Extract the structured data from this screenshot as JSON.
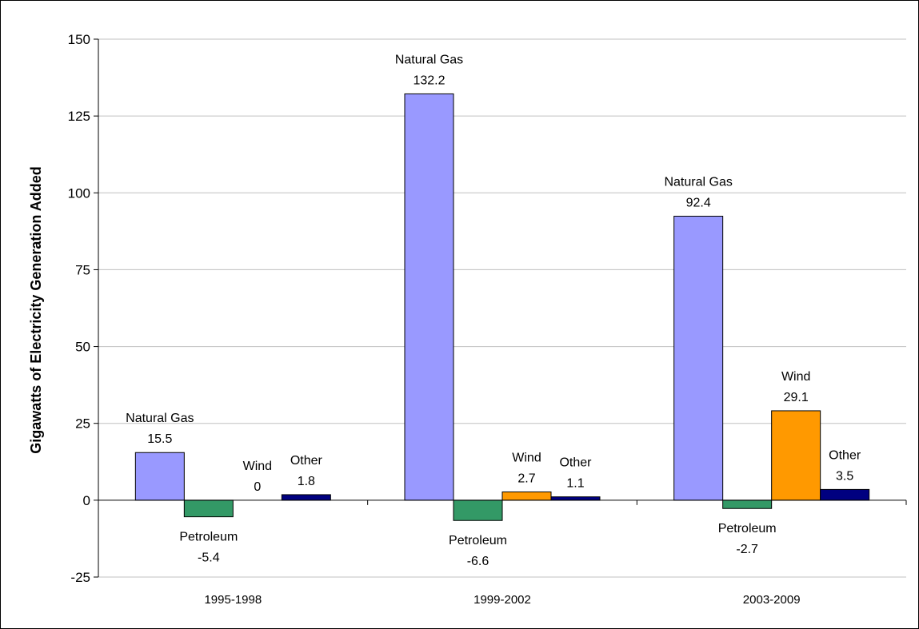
{
  "chart_data": {
    "type": "bar",
    "title": "",
    "xlabel": "",
    "ylabel": "Gigawatts of Electricity Generation Added",
    "ylim": [
      -25,
      150
    ],
    "yticks": [
      -25,
      0,
      25,
      50,
      75,
      100,
      125,
      150
    ],
    "grid": true,
    "legend": "none",
    "categories": [
      "1995-1998",
      "1999-2002",
      "2003-2009"
    ],
    "series": [
      {
        "name": "Natural Gas",
        "values": [
          15.5,
          132.2,
          92.4
        ],
        "color": "#9999ff"
      },
      {
        "name": "Petroleum",
        "values": [
          -5.4,
          -6.6,
          -2.7
        ],
        "color": "#339966"
      },
      {
        "name": "Wind",
        "values": [
          0,
          2.7,
          29.1
        ],
        "color": "#ff9900"
      },
      {
        "name": "Other",
        "values": [
          1.8,
          1.1,
          3.5
        ],
        "color": "#000080"
      }
    ]
  }
}
